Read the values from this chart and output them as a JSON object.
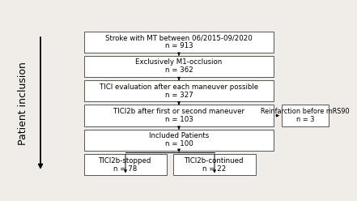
{
  "background_color": "#f0ede8",
  "box_face": "#f0ede8",
  "box_edge_color": "#555555",
  "text_color": "#000000",
  "arrow_color": "#000000",
  "font_size": 6.2,
  "font_size_small": 5.8,
  "label_font_size": 9.0,
  "main_boxes": [
    {
      "line1": "Stroke with MT between 06/2015-09/2020",
      "line2": "n = 913"
    },
    {
      "line1": "Exclusively M1-occlusion",
      "line2": "n = 362"
    },
    {
      "line1": "TICI evaluation after each maneuver possible",
      "line2": "n = 327"
    },
    {
      "line1": "TICI2b after first or second maneuver",
      "line2": "n = 103"
    },
    {
      "line1": "Included Patients",
      "line2": "n = 100"
    }
  ],
  "bottom_boxes": [
    {
      "line1": "TICI2b-stopped",
      "line2": "n = 78"
    },
    {
      "line1": "TICI2b-continued",
      "line2": "n = 22"
    }
  ],
  "side_box": {
    "line1": "Reinfarction before mRS90",
    "line2": "n = 3"
  },
  "side_label": "Patient inclusion"
}
